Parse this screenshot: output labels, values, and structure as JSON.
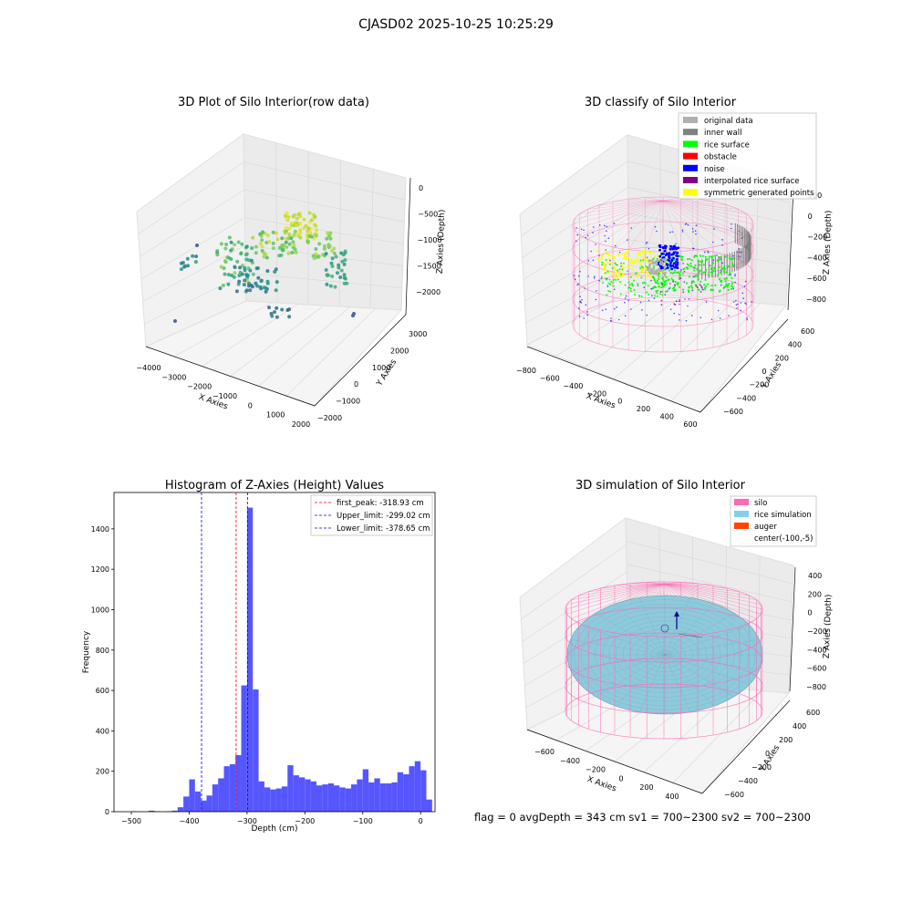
{
  "suptitle": "CJASD02 2025-10-25 10:25:29",
  "footer": "flag = 0     avgDepth = 343 cm  sv1 = 700~2300  sv2 = 700~2300",
  "colors": {
    "hist_bar": "#4d4dff",
    "pane": "#f2f2f2",
    "grid": "#d6d6d6",
    "silo": "#ff69b4",
    "rice_sim": "#8ec9dc"
  },
  "chart_data": [
    {
      "type": "scatter",
      "title": "3D Plot of Silo Interior(row data)",
      "xlabel": "X Axies",
      "ylabel": "Y Axies",
      "zlabel": "Z Axies (Depth)",
      "xticks": [
        "−4000",
        "−3000",
        "−2000",
        "−1000",
        "0",
        "1000",
        "2000"
      ],
      "yticks": [
        "−2000",
        "−1000",
        "0",
        "1000",
        "2000",
        "3000"
      ],
      "zticks": [
        "0",
        "−500",
        "−1000",
        "−1500",
        "−2000"
      ],
      "xlim": [
        -4200,
        2200
      ],
      "ylim": [
        -2200,
        3300
      ],
      "zlim": [
        -2300,
        100
      ],
      "colormap": "viridis"
    },
    {
      "type": "scatter",
      "title": "3D classify of Silo Interior",
      "xlabel": "X Axies",
      "ylabel": "Y Axies",
      "zlabel": "Z Axies (Depth)",
      "xticks": [
        "−800",
        "−600",
        "−400",
        "−200",
        "0",
        "200",
        "400",
        "600"
      ],
      "yticks": [
        "−600",
        "−400",
        "−200",
        "0",
        "200",
        "400",
        "600"
      ],
      "zticks": [
        "200",
        "0",
        "−200",
        "−400",
        "−600",
        "−800"
      ],
      "xlim": [
        -850,
        650
      ],
      "ylim": [
        -700,
        700
      ],
      "zlim": [
        -900,
        300
      ],
      "legend": [
        {
          "label": "original data",
          "color": "#b0b0b0"
        },
        {
          "label": "inner wall",
          "color": "#808080"
        },
        {
          "label": "rice surface",
          "color": "#00ff00"
        },
        {
          "label": "obstacle",
          "color": "#ff0000"
        },
        {
          "label": "noise",
          "color": "#0000ff"
        },
        {
          "label": "interpolated rice surface",
          "color": "#800080"
        },
        {
          "label": "symmetric generated points",
          "color": "#ffff00"
        }
      ],
      "legend_position": "upper right"
    },
    {
      "type": "bar",
      "title": "Histogram of Z-Axies (Height) Values",
      "xlabel": "Depth (cm)",
      "ylabel": "Frequency",
      "xlim": [
        -530,
        25
      ],
      "ylim": [
        0,
        1580
      ],
      "xticks": [
        -500,
        -400,
        -300,
        -200,
        -100,
        0
      ],
      "xtick_labels": [
        "−500",
        "−400",
        "−300",
        "−200",
        "−100",
        "0"
      ],
      "yticks": [
        0,
        200,
        400,
        600,
        800,
        1000,
        1200,
        1400
      ],
      "bin_start": -500,
      "bin_width": 10,
      "values": [
        2,
        0,
        0,
        5,
        2,
        0,
        2,
        5,
        22,
        75,
        160,
        100,
        55,
        80,
        135,
        165,
        225,
        235,
        280,
        625,
        1505,
        605,
        150,
        120,
        110,
        115,
        125,
        230,
        180,
        170,
        160,
        150,
        130,
        135,
        140,
        130,
        120,
        115,
        135,
        160,
        210,
        145,
        165,
        140,
        140,
        145,
        195,
        185,
        225,
        250,
        205,
        60
      ],
      "lines": [
        {
          "label": "first_peak: -318.93 cm",
          "x": -318.93,
          "color": "#ff0000"
        },
        {
          "label": "Upper_limit: -299.02 cm",
          "x": -299.02,
          "color": "#0000ff"
        },
        {
          "label": "Lower_limit: -378.65 cm",
          "x": -378.65,
          "color": "#0000ff"
        }
      ],
      "legend_position": "upper right"
    },
    {
      "type": "surface",
      "title": "3D simulation of Silo Interior",
      "xlabel": "X Axies",
      "ylabel": "Y Axies",
      "zlabel": "Z Axies (Depth)",
      "xticks": [
        "−600",
        "−400",
        "−200",
        "0",
        "200",
        "400"
      ],
      "yticks": [
        "−600",
        "−400",
        "−200",
        "0",
        "200",
        "400",
        "600"
      ],
      "zticks": [
        "400",
        "200",
        "0",
        "−200",
        "−400",
        "−600",
        "−800"
      ],
      "xlim": [
        -750,
        550
      ],
      "ylim": [
        -700,
        700
      ],
      "zlim": [
        -900,
        450
      ],
      "legend": [
        {
          "label": "silo",
          "color": "#ff69b4"
        },
        {
          "label": "rice simulation",
          "color": "#87ceeb"
        },
        {
          "label": "auger",
          "color": "#ff4500"
        },
        {
          "label": "center(-100,-5)",
          "color": ""
        }
      ],
      "legend_position": "upper right"
    }
  ]
}
